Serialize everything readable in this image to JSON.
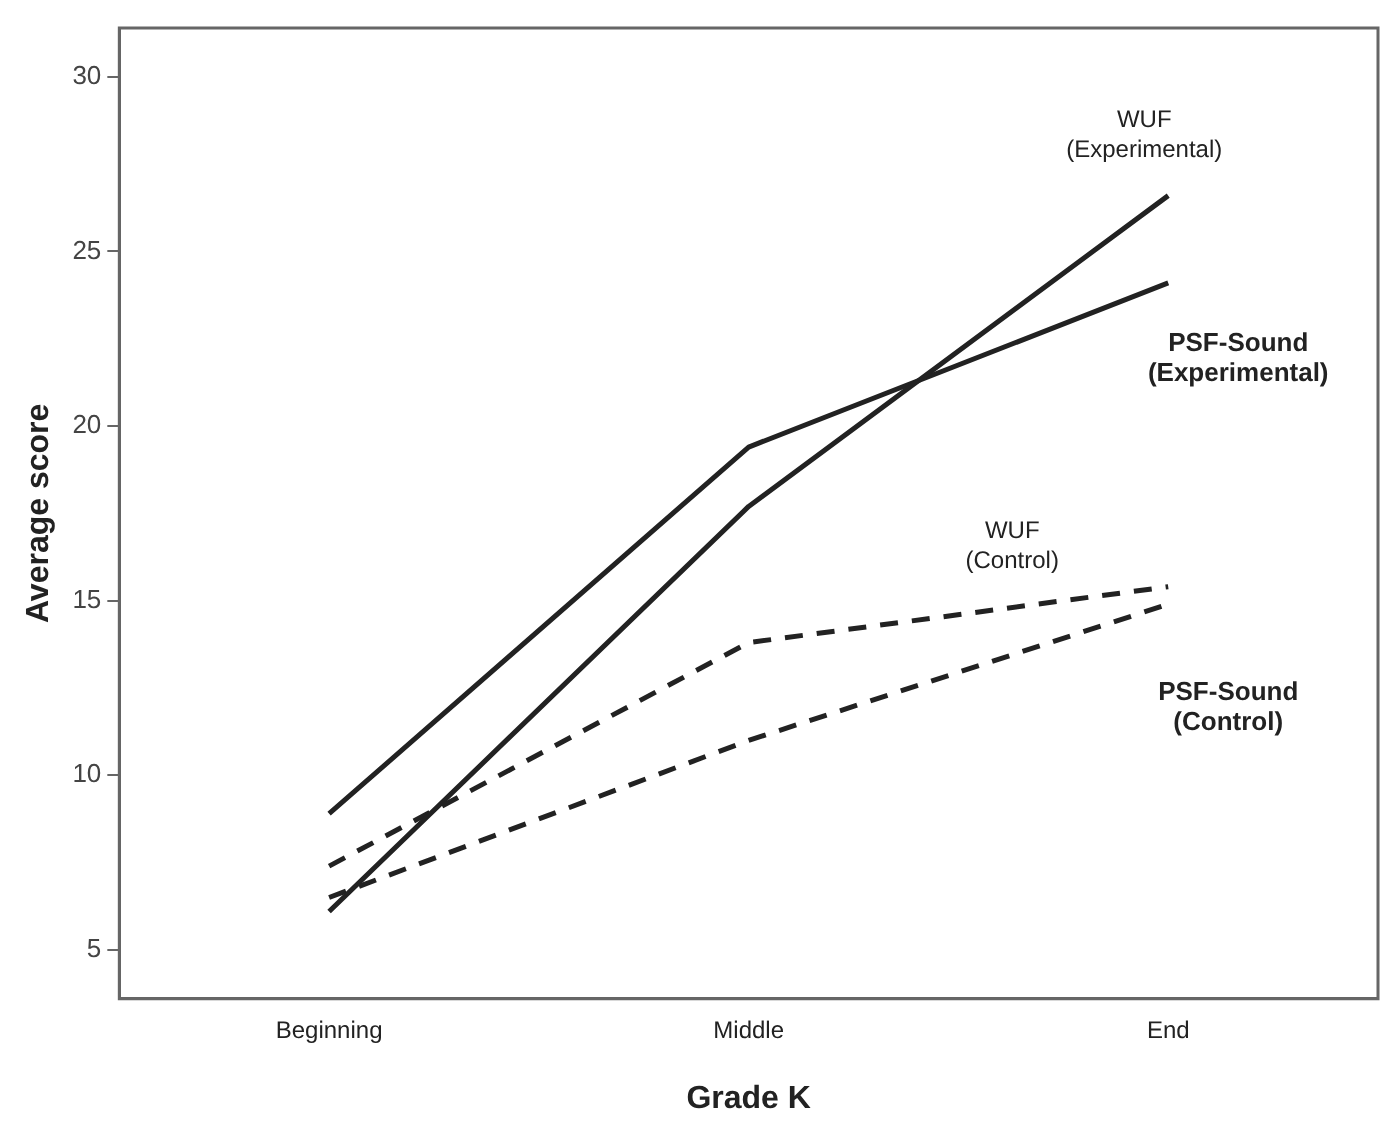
{
  "chart_data": {
    "type": "line",
    "xlabel": "Grade K",
    "ylabel": "Average score",
    "categories": [
      "Beginning",
      "Middle",
      "End"
    ],
    "series": [
      {
        "name": "WUF (Experimental)",
        "color": "#222222",
        "line_style": "solid",
        "values": [
          6.1,
          17.7,
          26.6
        ]
      },
      {
        "name": "PSF-Sound (Experimental)",
        "color": "#222222",
        "line_style": "solid",
        "values": [
          8.9,
          19.4,
          24.1
        ]
      },
      {
        "name": "WUF (Control)",
        "color": "#222222",
        "line_style": "dashed",
        "values": [
          7.4,
          13.8,
          15.4
        ]
      },
      {
        "name": "PSF-Sound (Control)",
        "color": "#222222",
        "line_style": "dashed",
        "values": [
          6.5,
          11.0,
          14.9
        ]
      }
    ],
    "ylim": [
      3.6,
      31.4
    ],
    "yticks": [
      5,
      10,
      15,
      20,
      25,
      30
    ],
    "grid": false,
    "legend": false,
    "marker": "none"
  }
}
